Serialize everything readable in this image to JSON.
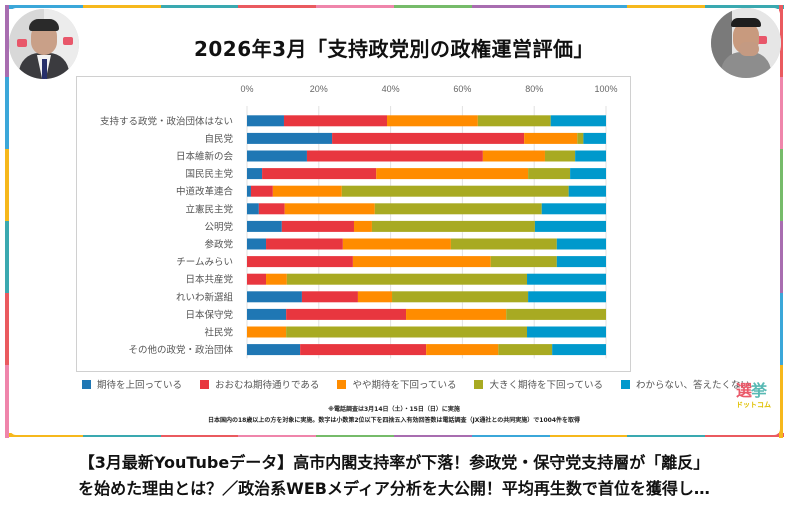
{
  "page": {
    "title": "2026年3月「支持政党別の政権運営評価」",
    "caption_lines": [
      "【3月最新YouTubeデータ】高市内閣支持率が下落！参政党・保守党支持層が「離反」",
      "を始めた理由とは？／政治系WEBメディア分析を大公開！平均再生数で首位を獲得し…"
    ],
    "notes": [
      "※電話調査は3月14日（土）・15日（日）に実施",
      "日本国内の18歳以上の方を対象に実施。数字は小数第2位以下を四捨五入有効回答数は電話調査（JX通社との共同実施）で1004件を取得"
    ],
    "brand": {
      "line1a": "選",
      "line1b": "挙",
      "line2": "ドットコム"
    },
    "frame_colors": [
      "#3ba7d9",
      "#f6b81c",
      "#3aa9b0",
      "#ea5a5f",
      "#ef85ab",
      "#76bb6a",
      "#a86db0"
    ]
  },
  "chart_data": {
    "type": "bar",
    "orientation": "horizontal",
    "stacked": "percent",
    "title": "2026年3月「支持政党別の政権運営評価」",
    "xlabel": "",
    "ylabel": "",
    "xlim": [
      0,
      100
    ],
    "x_ticks": [
      "0%",
      "20%",
      "40%",
      "60%",
      "80%",
      "100%"
    ],
    "grid": true,
    "legend_position": "bottom",
    "categories": [
      "支持する政党・政治団体はない",
      "自民党",
      "日本維新の会",
      "国民民主党",
      "中道改革連合",
      "立憲民主党",
      "公明党",
      "参政党",
      "チームみらい",
      "日本共産党",
      "れいわ新選組",
      "日本保守党",
      "社民党",
      "その他の政党・政治団体"
    ],
    "series": [
      {
        "name": "期待を上回っている",
        "color": "#1f77b4",
        "values": [
          10.3,
          23.7,
          16.7,
          4.2,
          1.1,
          3.3,
          9.7,
          5.3,
          0,
          0,
          15.3,
          10.9,
          0,
          14.8
        ]
      },
      {
        "name": "おおむね期待通りである",
        "color": "#e8363f",
        "values": [
          28.7,
          53.5,
          49.0,
          31.8,
          6.1,
          7.2,
          20.1,
          21.4,
          29.5,
          5.3,
          15.6,
          33.4,
          0,
          35.1
        ]
      },
      {
        "name": "やや期待を下回っている",
        "color": "#ff8c00",
        "values": [
          25.3,
          14.8,
          17.3,
          42.3,
          19.2,
          25.1,
          5.0,
          30.1,
          38.4,
          5.8,
          9.5,
          27.9,
          10.9,
          20.1
        ]
      },
      {
        "name": "大きく期待を下回っている",
        "color": "#a8aa22",
        "values": [
          20.3,
          1.7,
          8.4,
          11.7,
          63.2,
          46.5,
          45.4,
          29.5,
          18.4,
          66.9,
          37.9,
          27.8,
          67.1,
          15.0
        ]
      },
      {
        "name": "わからない、答えたくない",
        "color": "#0099cc",
        "values": [
          15.4,
          6.3,
          8.6,
          10.0,
          10.4,
          17.9,
          19.8,
          13.7,
          13.7,
          22.0,
          21.7,
          0,
          22.0,
          15.0
        ]
      }
    ]
  }
}
